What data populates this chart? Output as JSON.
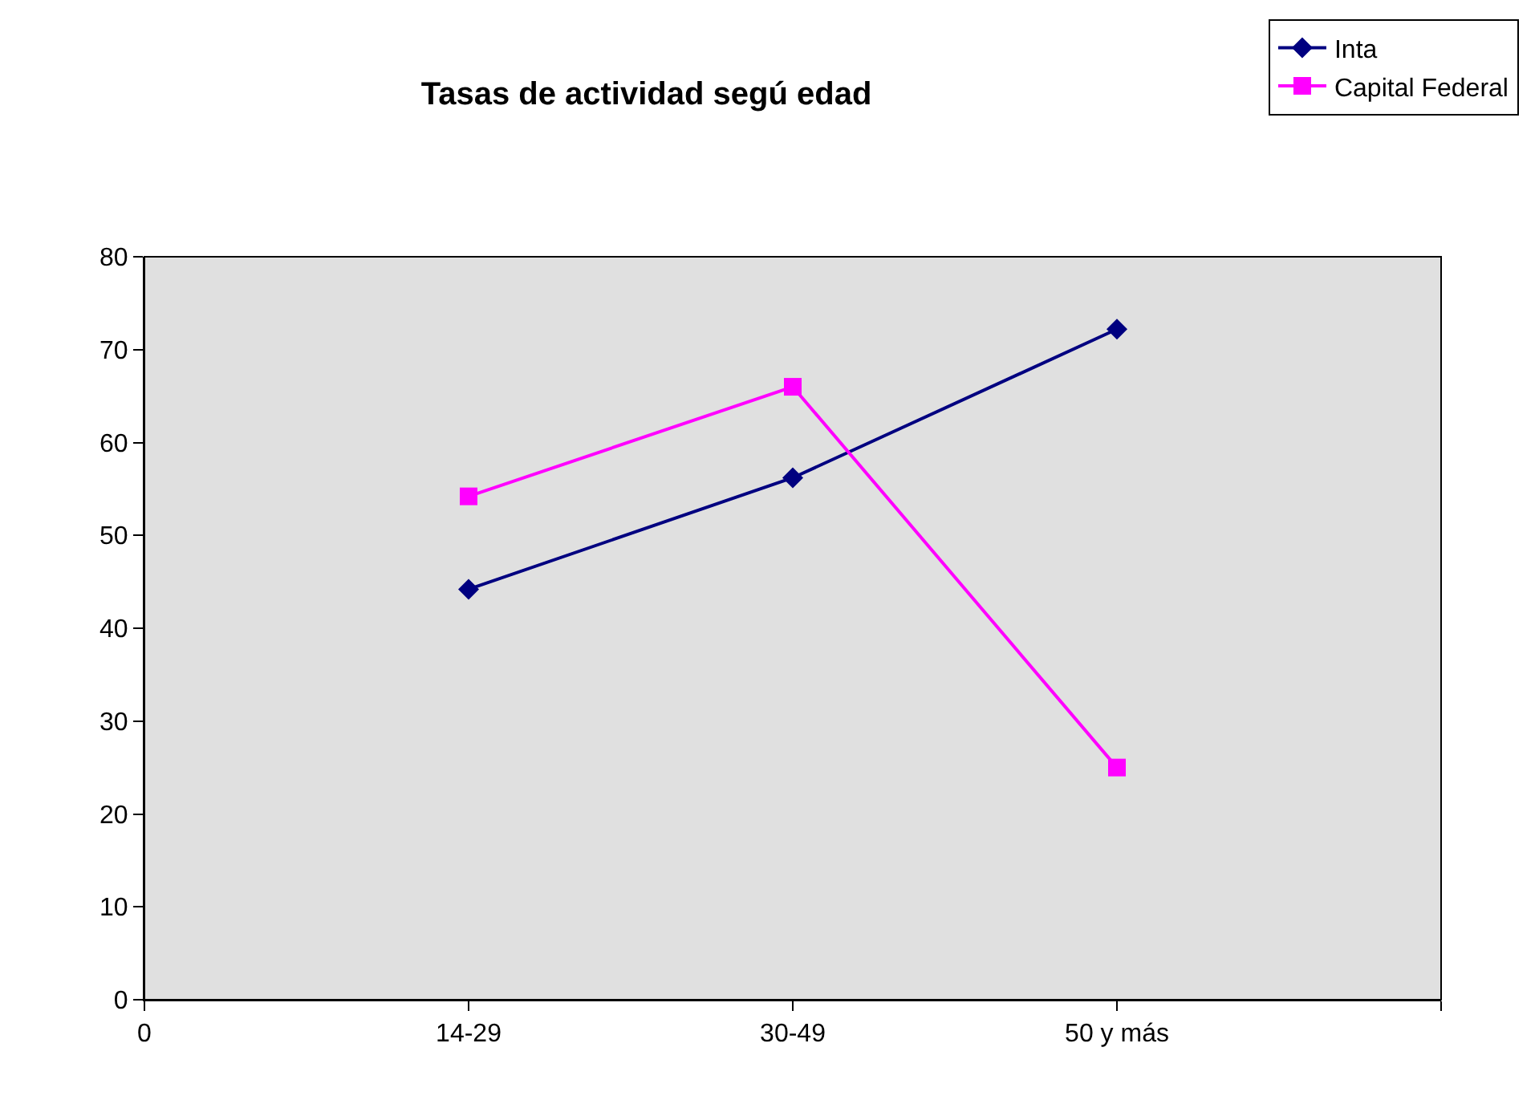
{
  "chart_data": {
    "type": "line",
    "title": "Tasas de actividad segú edad",
    "categories": [
      "0",
      "14-29",
      "30-49",
      "50 y más",
      null
    ],
    "series": [
      {
        "name": "Inta",
        "color": "#000080",
        "marker": "diamond",
        "values": [
          null,
          44.2,
          56.2,
          72.2,
          null
        ]
      },
      {
        "name": "Capital Federal",
        "color": "#ff00ff",
        "marker": "square",
        "values": [
          null,
          54.2,
          66,
          25,
          null
        ]
      }
    ],
    "ylim": [
      0,
      80
    ],
    "yticks": [
      0,
      10,
      20,
      30,
      40,
      50,
      60,
      70,
      80
    ],
    "grid": false,
    "legend": "top right"
  }
}
